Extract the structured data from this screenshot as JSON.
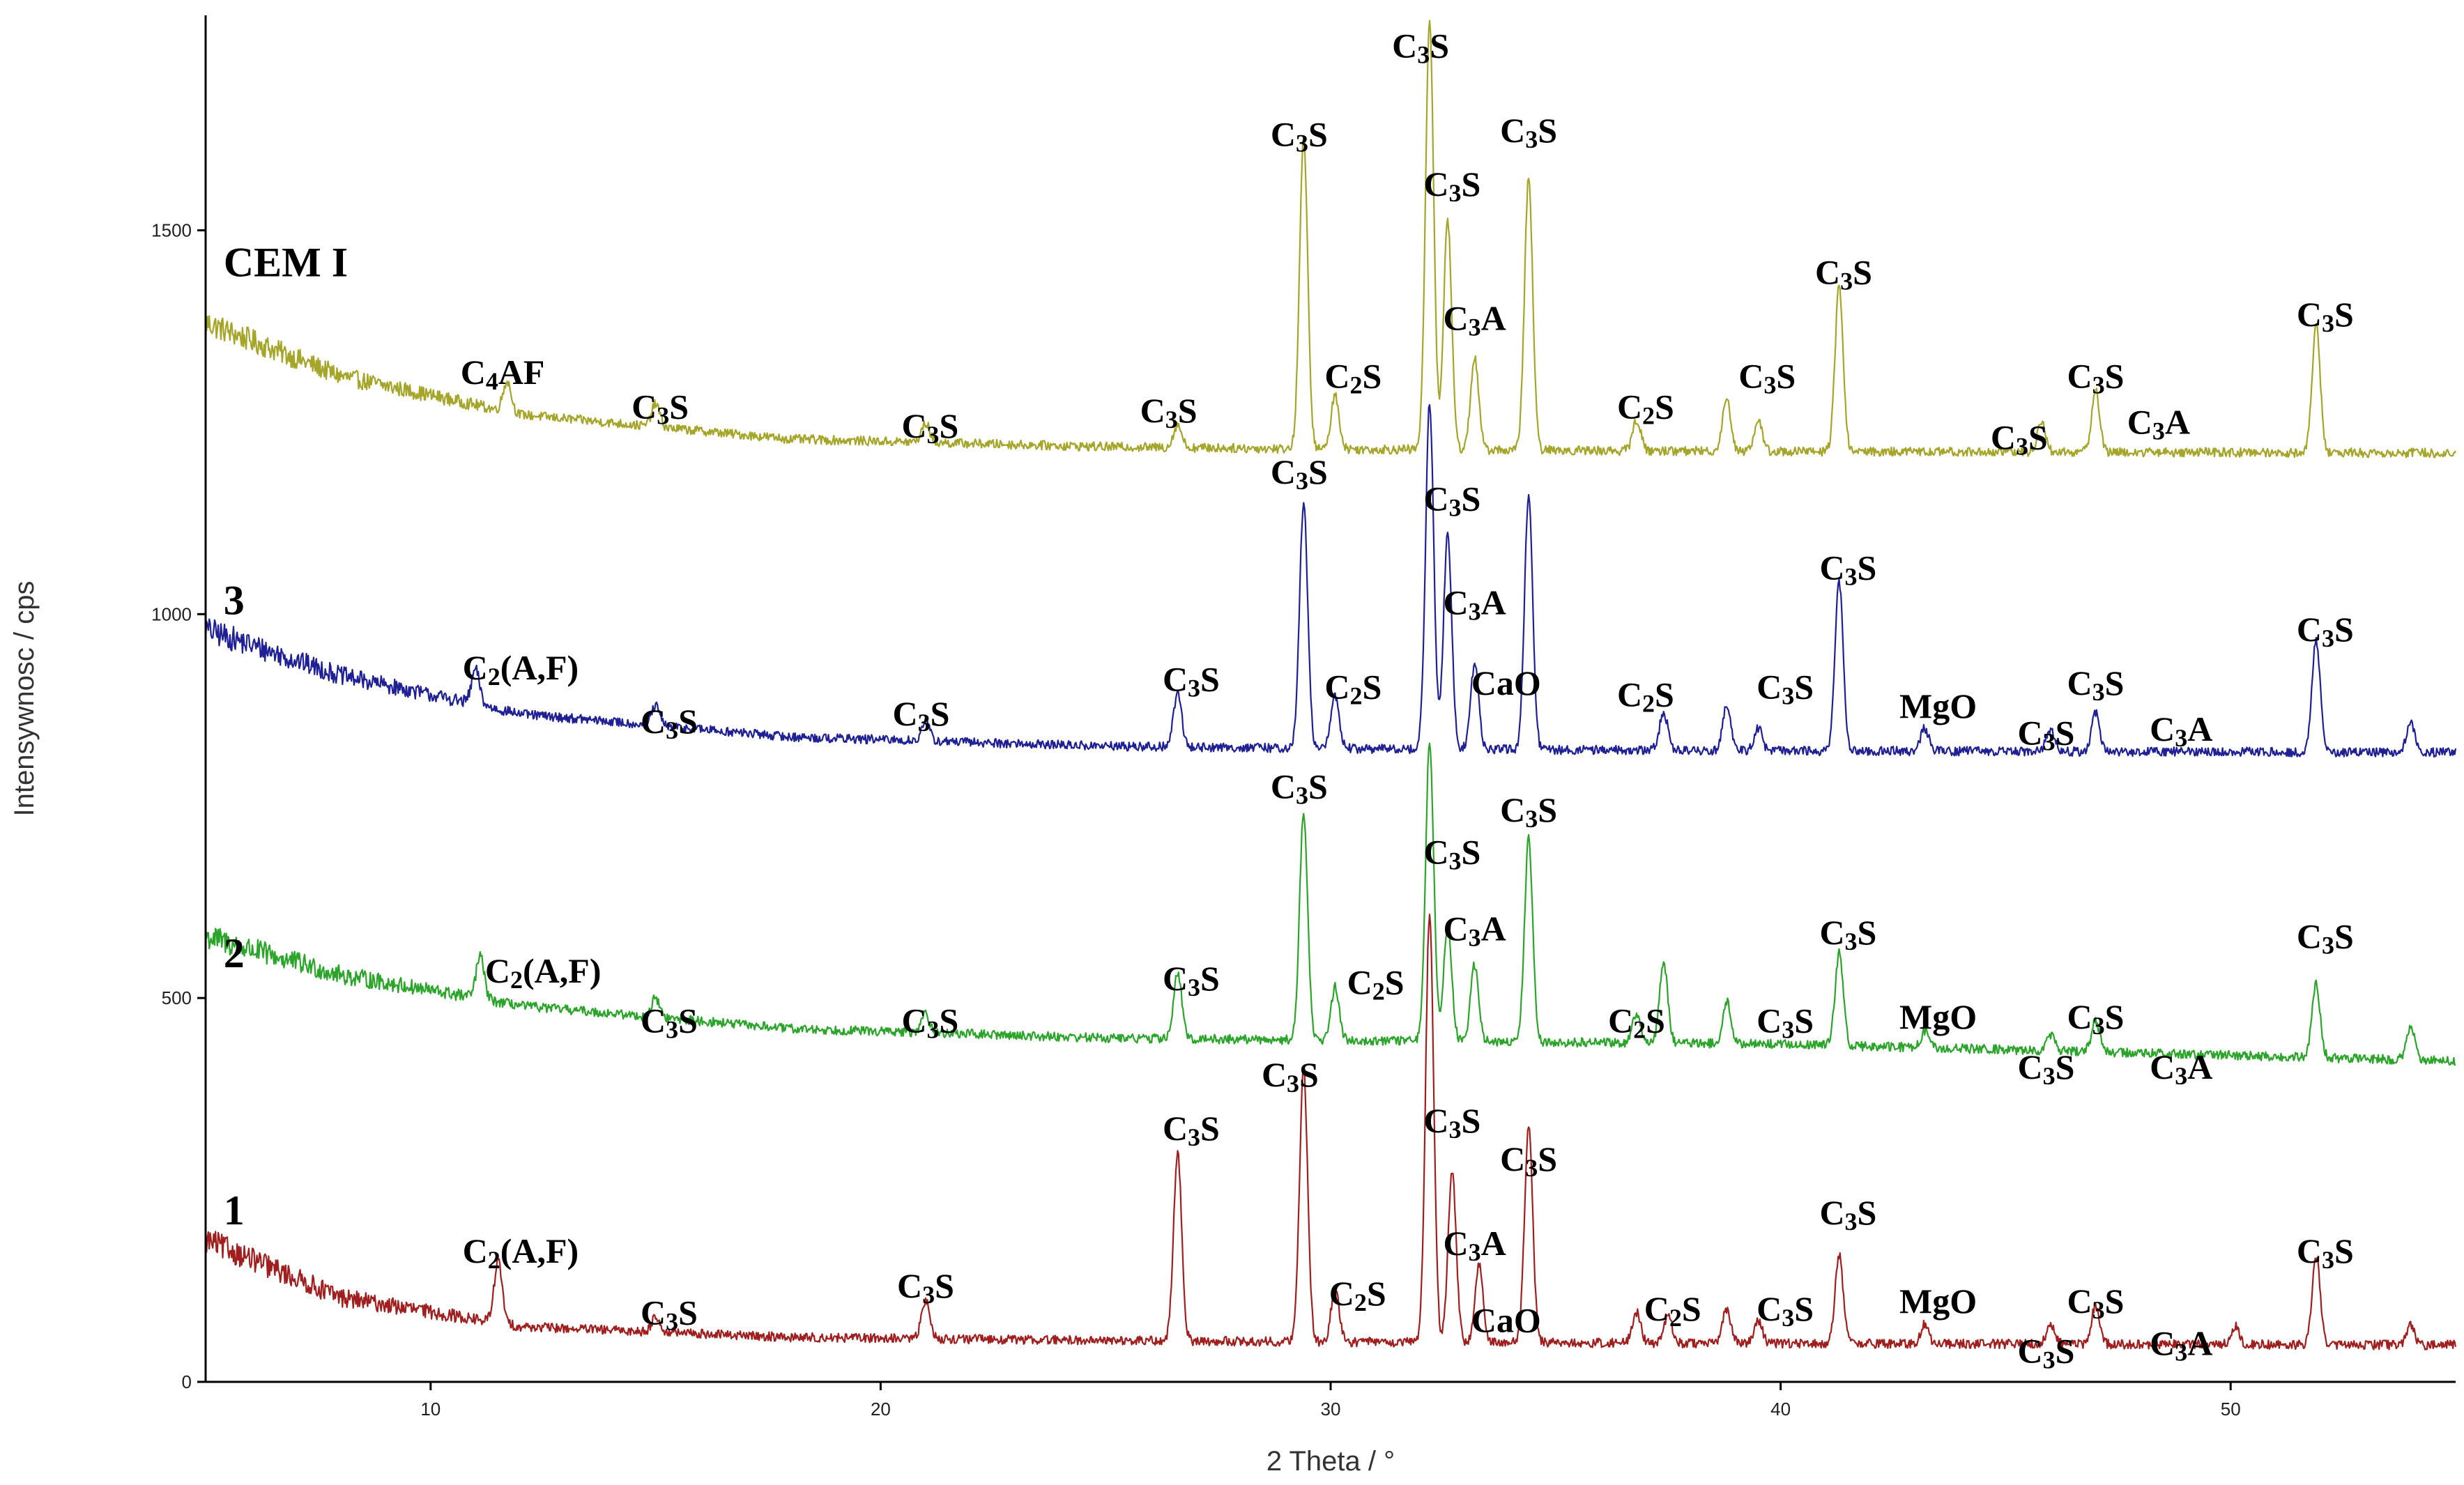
{
  "chart_data": {
    "type": "line",
    "title": "",
    "xlabel": "2 Theta / °",
    "ylabel": "Intensywnosc / cps",
    "xlim": [
      5,
      55
    ],
    "ylim": [
      0,
      1780
    ],
    "x_ticks": [
      10,
      20,
      30,
      40,
      50
    ],
    "y_ticks": [
      0,
      500,
      1000,
      1500
    ],
    "grid": false,
    "legend": "none",
    "series": [
      {
        "name": "CEM I",
        "color": "#a5a52a",
        "baseline": [
          [
            5,
            1380
          ],
          [
            8,
            1310
          ],
          [
            12,
            1260
          ],
          [
            18,
            1228
          ],
          [
            25,
            1218
          ],
          [
            30,
            1215
          ],
          [
            40,
            1212
          ],
          [
            55,
            1210
          ]
        ],
        "peaks": [
          [
            11.7,
            40
          ],
          [
            15.0,
            30
          ],
          [
            21.0,
            25
          ],
          [
            26.6,
            30
          ],
          [
            29.4,
            405
          ],
          [
            30.1,
            70
          ],
          [
            32.2,
            560
          ],
          [
            32.6,
            300
          ],
          [
            33.2,
            120
          ],
          [
            34.4,
            355
          ],
          [
            36.8,
            40
          ],
          [
            38.8,
            70
          ],
          [
            39.5,
            40
          ],
          [
            41.3,
            215
          ],
          [
            45.8,
            40
          ],
          [
            47.0,
            80
          ],
          [
            51.9,
            165
          ]
        ]
      },
      {
        "name": "3",
        "color": "#1f1f96",
        "baseline": [
          [
            5,
            980
          ],
          [
            8,
            920
          ],
          [
            12,
            870
          ],
          [
            18,
            840
          ],
          [
            25,
            828
          ],
          [
            30,
            825
          ],
          [
            40,
            822
          ],
          [
            55,
            820
          ]
        ],
        "peaks": [
          [
            11.0,
            45
          ],
          [
            15.0,
            25
          ],
          [
            21.0,
            25
          ],
          [
            26.6,
            70
          ],
          [
            29.4,
            320
          ],
          [
            30.1,
            70
          ],
          [
            32.2,
            450
          ],
          [
            32.6,
            280
          ],
          [
            33.2,
            110
          ],
          [
            34.4,
            330
          ],
          [
            37.4,
            50
          ],
          [
            38.8,
            60
          ],
          [
            39.5,
            30
          ],
          [
            41.3,
            220
          ],
          [
            43.2,
            30
          ],
          [
            46.0,
            30
          ],
          [
            47.0,
            50
          ],
          [
            51.9,
            145
          ],
          [
            54.0,
            40
          ]
        ]
      },
      {
        "name": "2",
        "color": "#2aa52a",
        "baseline": [
          [
            5,
            580
          ],
          [
            8,
            530
          ],
          [
            12,
            490
          ],
          [
            18,
            460
          ],
          [
            25,
            448
          ],
          [
            30,
            445
          ],
          [
            40,
            440
          ],
          [
            55,
            418
          ]
        ],
        "peaks": [
          [
            11.1,
            55
          ],
          [
            15.0,
            25
          ],
          [
            21.0,
            25
          ],
          [
            26.6,
            85
          ],
          [
            29.4,
            295
          ],
          [
            30.1,
            70
          ],
          [
            32.2,
            390
          ],
          [
            32.6,
            150
          ],
          [
            33.2,
            100
          ],
          [
            34.4,
            265
          ],
          [
            36.8,
            40
          ],
          [
            37.4,
            105
          ],
          [
            38.8,
            55
          ],
          [
            41.3,
            120
          ],
          [
            43.2,
            20
          ],
          [
            46.0,
            20
          ],
          [
            47.0,
            40
          ],
          [
            51.9,
            95
          ],
          [
            54.0,
            45
          ]
        ]
      },
      {
        "name": "1",
        "color": "#a01e1e",
        "baseline": [
          [
            5,
            185
          ],
          [
            8,
            110
          ],
          [
            12,
            72
          ],
          [
            18,
            58
          ],
          [
            25,
            54
          ],
          [
            30,
            52
          ],
          [
            40,
            50
          ],
          [
            55,
            48
          ]
        ],
        "peaks": [
          [
            11.5,
            80
          ],
          [
            15.0,
            20
          ],
          [
            21.0,
            50
          ],
          [
            26.6,
            245
          ],
          [
            29.4,
            355
          ],
          [
            30.1,
            70
          ],
          [
            32.2,
            560
          ],
          [
            32.7,
            220
          ],
          [
            33.3,
            100
          ],
          [
            34.4,
            285
          ],
          [
            36.8,
            40
          ],
          [
            37.5,
            35
          ],
          [
            38.8,
            45
          ],
          [
            39.5,
            30
          ],
          [
            41.3,
            115
          ],
          [
            43.2,
            25
          ],
          [
            46.0,
            25
          ],
          [
            47.0,
            50
          ],
          [
            50.1,
            25
          ],
          [
            51.9,
            115
          ],
          [
            54.0,
            25
          ]
        ]
      }
    ],
    "series_labels": [
      {
        "text": "CEM I",
        "x": 5.4,
        "y": 1440
      },
      {
        "text": "3",
        "x": 5.4,
        "y": 1000
      },
      {
        "text": "2",
        "x": 5.4,
        "y": 540
      },
      {
        "text": "1",
        "x": 5.4,
        "y": 205
      }
    ],
    "annotations": [
      {
        "text": "C4AF",
        "x": 11.6,
        "y": 1300
      },
      {
        "text": "C3S",
        "x": 15.1,
        "y": 1255
      },
      {
        "text": "C3S",
        "x": 21.1,
        "y": 1230
      },
      {
        "text": "C3S",
        "x": 26.4,
        "y": 1250
      },
      {
        "text": "C3S",
        "x": 29.3,
        "y": 1610
      },
      {
        "text": "C2S",
        "x": 30.5,
        "y": 1295
      },
      {
        "text": "C3S",
        "x": 32.0,
        "y": 1725
      },
      {
        "text": "C3S",
        "x": 32.7,
        "y": 1545
      },
      {
        "text": "C3A",
        "x": 33.2,
        "y": 1370
      },
      {
        "text": "C3S",
        "x": 34.4,
        "y": 1615
      },
      {
        "text": "C2S",
        "x": 37.0,
        "y": 1255
      },
      {
        "text": "C3S",
        "x": 39.7,
        "y": 1295
      },
      {
        "text": "C3S",
        "x": 41.4,
        "y": 1430
      },
      {
        "text": "C3S",
        "x": 45.3,
        "y": 1215
      },
      {
        "text": "C3S",
        "x": 47.0,
        "y": 1295
      },
      {
        "text": "C3A",
        "x": 48.4,
        "y": 1235
      },
      {
        "text": "C3S",
        "x": 52.1,
        "y": 1375
      },
      {
        "text": "C2(A,F)",
        "x": 12.0,
        "y": 915
      },
      {
        "text": "C3S",
        "x": 15.3,
        "y": 845
      },
      {
        "text": "C3S",
        "x": 20.9,
        "y": 855
      },
      {
        "text": "C3S",
        "x": 26.9,
        "y": 900
      },
      {
        "text": "C3S",
        "x": 29.3,
        "y": 1170
      },
      {
        "text": "C2S",
        "x": 30.5,
        "y": 890
      },
      {
        "text": "C3S",
        "x": 32.7,
        "y": 1135
      },
      {
        "text": "C3A",
        "x": 33.2,
        "y": 1000
      },
      {
        "text": "CaO",
        "x": 33.9,
        "y": 895
      },
      {
        "text": "C2S",
        "x": 37.0,
        "y": 880
      },
      {
        "text": "C3S",
        "x": 40.1,
        "y": 890
      },
      {
        "text": "C3S",
        "x": 41.5,
        "y": 1045
      },
      {
        "text": "MgO",
        "x": 43.5,
        "y": 865
      },
      {
        "text": "C3S",
        "x": 45.9,
        "y": 830
      },
      {
        "text": "C3S",
        "x": 47.0,
        "y": 895
      },
      {
        "text": "C3A",
        "x": 48.9,
        "y": 835
      },
      {
        "text": "C3S",
        "x": 52.1,
        "y": 965
      },
      {
        "text": "C2(A,F)",
        "x": 12.5,
        "y": 520
      },
      {
        "text": "C3S",
        "x": 15.3,
        "y": 455
      },
      {
        "text": "C3S",
        "x": 21.1,
        "y": 455
      },
      {
        "text": "C3S",
        "x": 26.9,
        "y": 510
      },
      {
        "text": "C3S",
        "x": 29.3,
        "y": 760
      },
      {
        "text": "C2S",
        "x": 31.0,
        "y": 505
      },
      {
        "text": "C3S",
        "x": 32.7,
        "y": 675
      },
      {
        "text": "C3A",
        "x": 33.2,
        "y": 575
      },
      {
        "text": "C3S",
        "x": 34.4,
        "y": 730
      },
      {
        "text": "C2S",
        "x": 36.8,
        "y": 455
      },
      {
        "text": "C3S",
        "x": 40.1,
        "y": 455
      },
      {
        "text": "C3S",
        "x": 41.5,
        "y": 570
      },
      {
        "text": "MgO",
        "x": 43.5,
        "y": 460
      },
      {
        "text": "C3S",
        "x": 45.9,
        "y": 395
      },
      {
        "text": "C3S",
        "x": 47.0,
        "y": 460
      },
      {
        "text": "C3A",
        "x": 48.9,
        "y": 395
      },
      {
        "text": "C3S",
        "x": 52.1,
        "y": 565
      },
      {
        "text": "C2(A,F)",
        "x": 12.0,
        "y": 155
      },
      {
        "text": "C3S",
        "x": 15.3,
        "y": 75
      },
      {
        "text": "C3S",
        "x": 21.0,
        "y": 110
      },
      {
        "text": "C3S",
        "x": 26.9,
        "y": 315
      },
      {
        "text": "C3S",
        "x": 29.1,
        "y": 385
      },
      {
        "text": "C2S",
        "x": 30.6,
        "y": 100
      },
      {
        "text": "C3S",
        "x": 32.7,
        "y": 325
      },
      {
        "text": "C3A",
        "x": 33.2,
        "y": 165
      },
      {
        "text": "CaO",
        "x": 33.9,
        "y": 65
      },
      {
        "text": "C3S",
        "x": 34.4,
        "y": 275
      },
      {
        "text": "C2S",
        "x": 37.6,
        "y": 80
      },
      {
        "text": "C3S",
        "x": 40.1,
        "y": 80
      },
      {
        "text": "C3S",
        "x": 41.5,
        "y": 205
      },
      {
        "text": "MgO",
        "x": 43.5,
        "y": 90
      },
      {
        "text": "C3S",
        "x": 45.9,
        "y": 25
      },
      {
        "text": "C3S",
        "x": 47.0,
        "y": 90
      },
      {
        "text": "C3A",
        "x": 48.9,
        "y": 35
      },
      {
        "text": "C3S",
        "x": 52.1,
        "y": 155
      }
    ]
  }
}
